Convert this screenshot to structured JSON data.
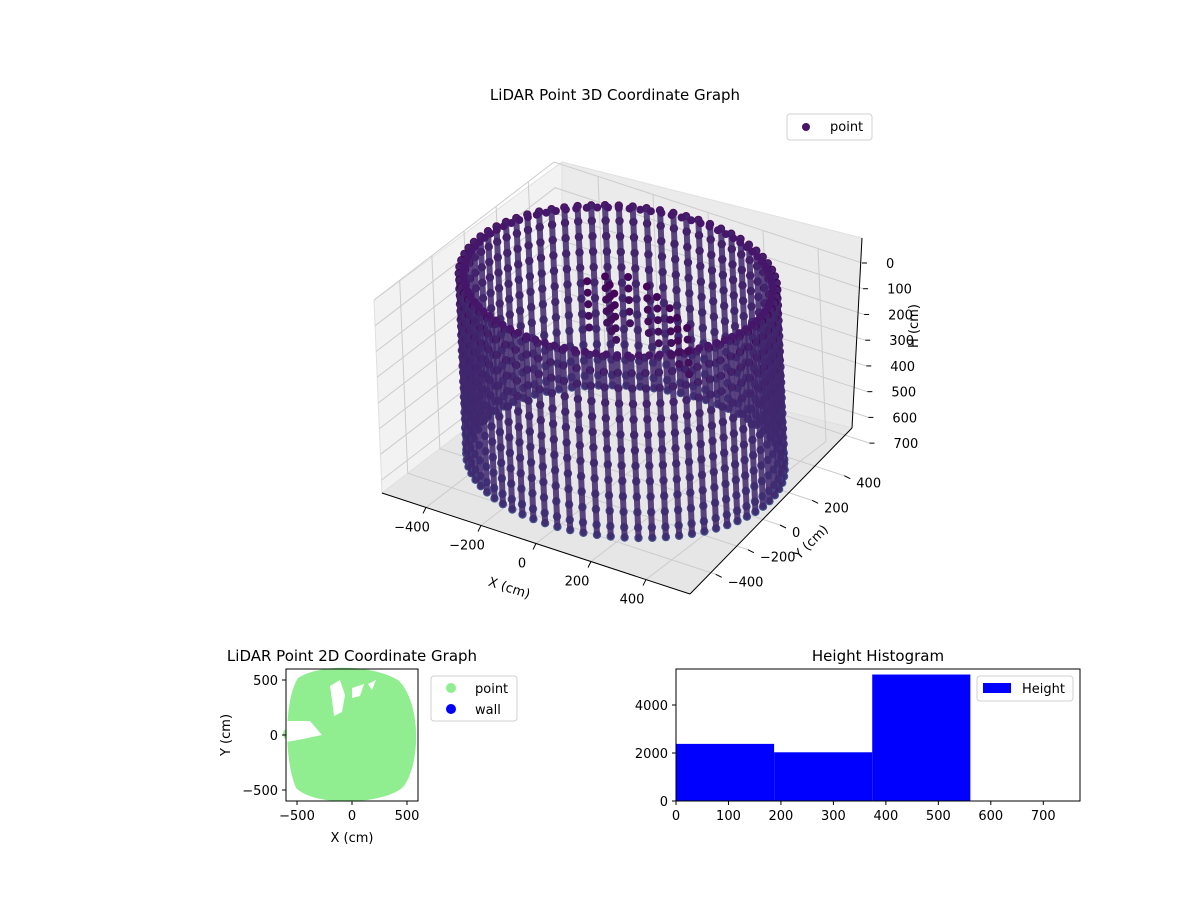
{
  "chart_data": [
    {
      "type": "scatter3d",
      "title": "LiDAR Point 3D Coordinate Graph",
      "xlabel": "X (cm)",
      "ylabel": "Y (cm)",
      "zlabel": "H (cm)",
      "x_ticks": [
        -400,
        -200,
        0,
        200,
        400
      ],
      "y_ticks": [
        -400,
        -200,
        0,
        200,
        400
      ],
      "z_ticks": [
        0,
        100,
        200,
        300,
        400,
        500,
        600,
        700
      ],
      "xlim": [
        -560,
        560
      ],
      "ylim": [
        -560,
        560
      ],
      "zlim": [
        750,
        0
      ],
      "z_inverted": true,
      "legend": [
        {
          "label": "point",
          "color": "#46166b"
        }
      ],
      "legend_position": "upper right",
      "colormap": [
        "#440154",
        "#3b528b"
      ],
      "description_shape": "cylindrical wall of points, radius ~500 cm, height 0–700 cm, with an inner cluster"
    },
    {
      "type": "scatter",
      "title": "LiDAR Point 2D Coordinate Graph",
      "xlabel": "X (cm)",
      "ylabel": "Y (cm)",
      "x_ticks": [
        -500,
        0,
        500
      ],
      "y_ticks": [
        500,
        0,
        -500
      ],
      "xlim": [
        -600,
        600
      ],
      "ylim": [
        -600,
        600
      ],
      "series": [
        {
          "name": "point",
          "color": "#90ee90"
        },
        {
          "name": "wall",
          "color": "#0000ff"
        }
      ],
      "legend_position": "outside right"
    },
    {
      "type": "bar",
      "title": "Height Histogram",
      "x_ticks": [
        0,
        100,
        200,
        300,
        400,
        500,
        600,
        700
      ],
      "y_ticks": [
        0,
        2000,
        4000
      ],
      "xlim": [
        0,
        770
      ],
      "ylim": [
        0,
        5500
      ],
      "bins": [
        {
          "x0": 0,
          "x1": 187,
          "count": 2380
        },
        {
          "x0": 187,
          "x1": 374,
          "count": 2030
        },
        {
          "x0": 374,
          "x1": 561,
          "count": 5270
        }
      ],
      "series": [
        {
          "name": "Height",
          "color": "#0000ff"
        }
      ],
      "legend_position": "upper right"
    }
  ]
}
